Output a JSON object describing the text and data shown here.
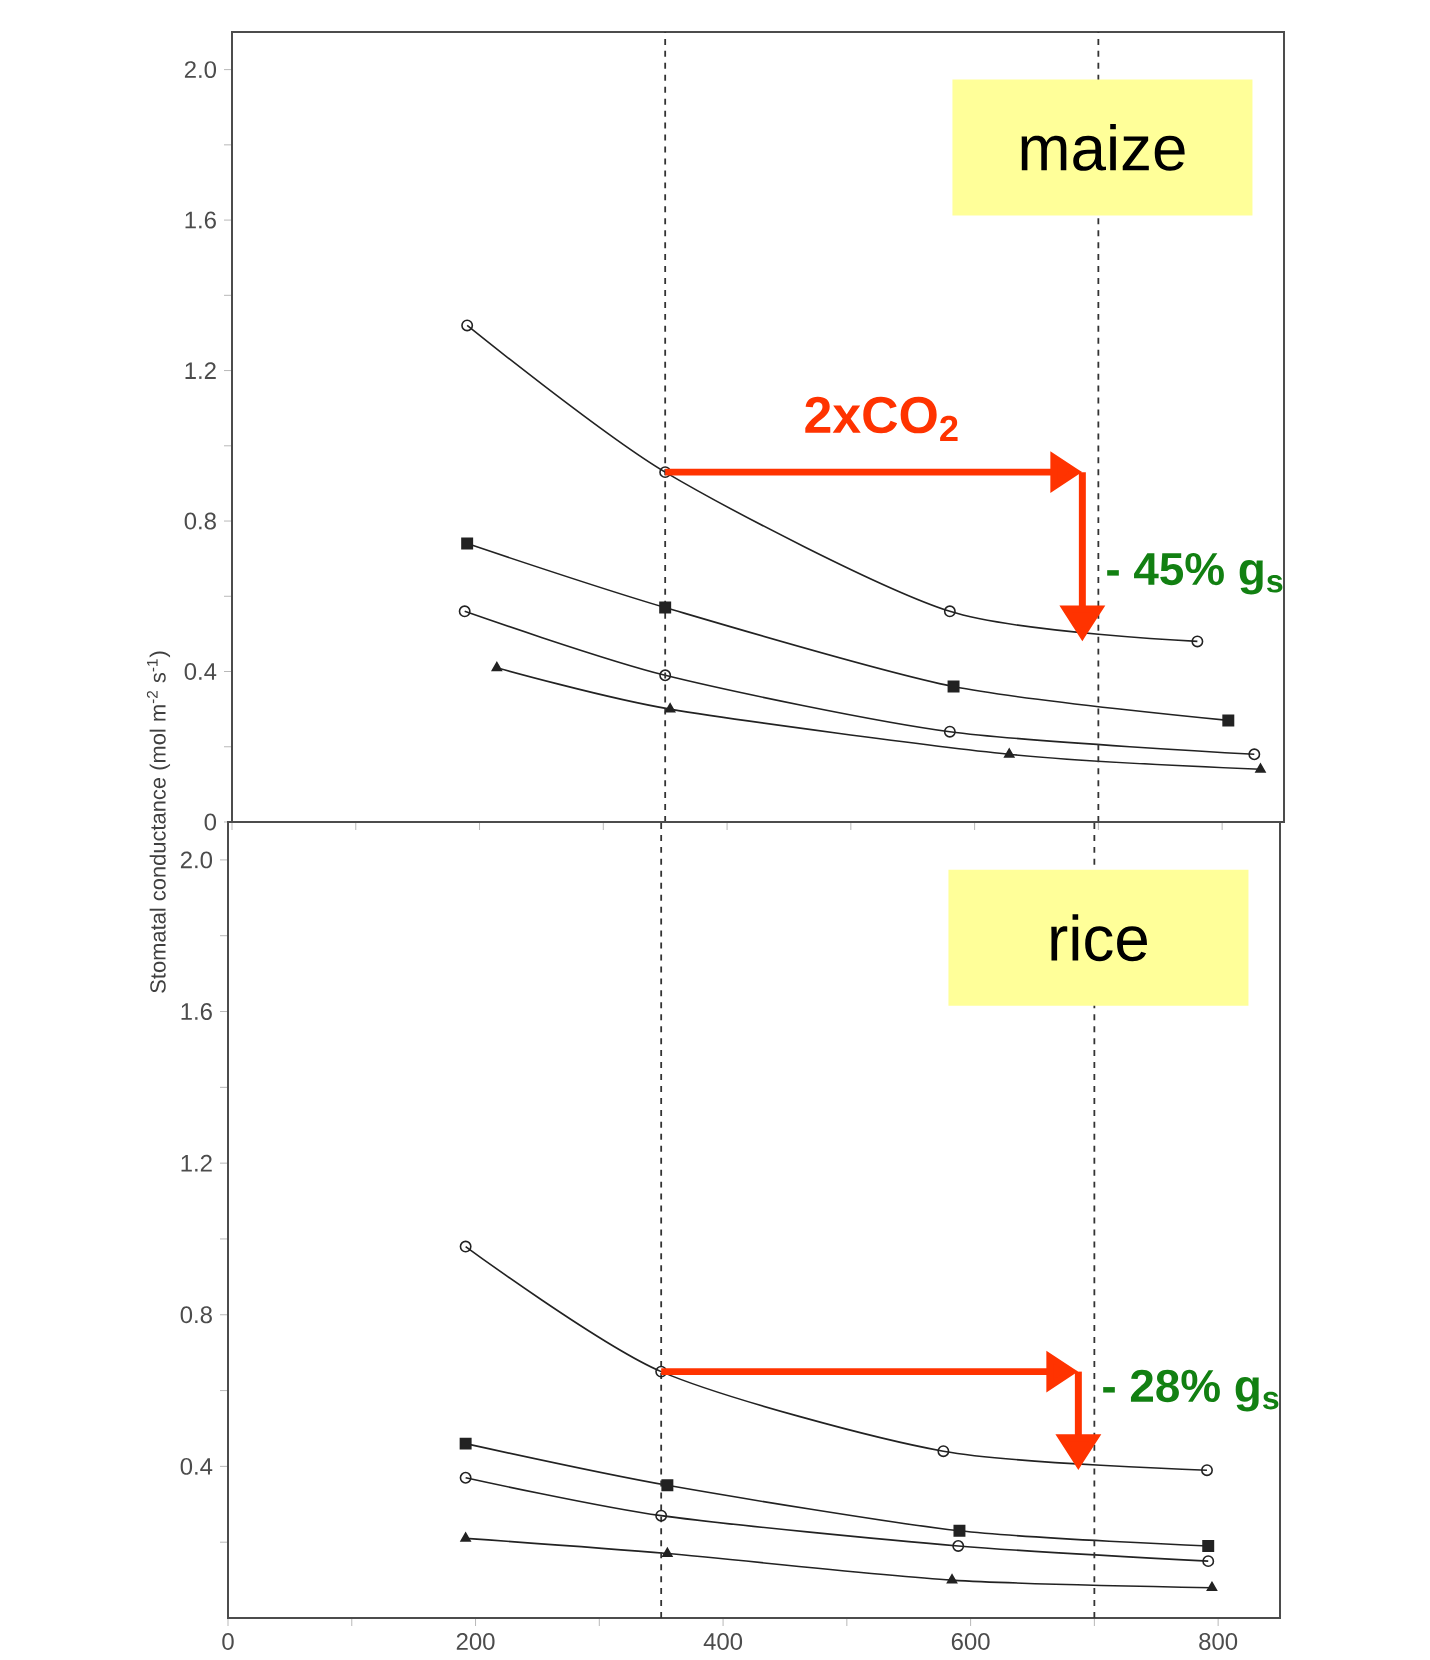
{
  "chart_data": [
    {
      "type": "line",
      "ylabel": "Stomatal conductance (mol m$^{-2}$ s$^{-1}$)",
      "xlim": [
        0,
        850
      ],
      "ylim": [
        0,
        2.1
      ],
      "xticks": [
        0,
        {
          "value": 100,
          "label": null
        },
        200,
        {
          "value": 300,
          "label": null
        },
        400,
        {
          "value": 500,
          "label": null
        },
        600,
        {
          "value": 700,
          "label": null
        },
        800
      ],
      "yticks": [
        0,
        {
          "value": 0.2,
          "label": null
        },
        0.4,
        {
          "value": 0.6,
          "label": null
        },
        0.8,
        {
          "value": 1.0,
          "label": null
        },
        1.2,
        {
          "value": 1.4,
          "label": null
        },
        1.6,
        {
          "value": 1.8,
          "label": null
        },
        {
          "value": 2,
          "label": "2.0"
        }
      ],
      "tick_labels": "y",
      "grid": false,
      "line_style": "solid",
      "series": [
        {
          "color": "#222222",
          "marker": "circle",
          "x": [
            190,
            350,
            580,
            780
          ],
          "values": [
            1.32,
            0.93,
            0.56,
            0.48
          ]
        },
        {
          "color": "#222222",
          "marker": "square",
          "x": [
            190,
            350,
            583,
            805
          ],
          "values": [
            0.74,
            0.57,
            0.36,
            0.27
          ]
        },
        {
          "color": "#222222",
          "marker": "circle",
          "x": [
            188,
            350,
            580,
            826
          ],
          "values": [
            0.56,
            0.39,
            0.24,
            0.18
          ]
        },
        {
          "color": "#222222",
          "marker": "triangle",
          "x": [
            214,
            354,
            628,
            831
          ],
          "values": [
            0.41,
            0.3,
            0.18,
            0.14
          ]
        }
      ],
      "ref_lines": [
        {
          "axis": "x",
          "value": 350,
          "color": "#333333",
          "line_style": "dashed"
        },
        {
          "axis": "x",
          "value": 700,
          "color": "#333333",
          "line_style": "dashed"
        }
      ],
      "annotations": [
        "maize",
        "2xCO$_{2}$",
        {
          "text": "- 45% g$_{s}$",
          "x": 700,
          "y": 0.66
        }
      ]
    },
    {
      "type": "line",
      "xlim": [
        0,
        850
      ],
      "ylim": [
        0,
        2.1
      ],
      "xticks": [
        0,
        {
          "value": 100,
          "label": null
        },
        200,
        {
          "value": 300,
          "label": null
        },
        400,
        {
          "value": 500,
          "label": null
        },
        600,
        {
          "value": 700,
          "label": null
        },
        800
      ],
      "yticks": [
        {
          "value": 0.2,
          "label": null
        },
        0.4,
        {
          "value": 0.6,
          "label": null
        },
        0.8,
        {
          "value": 1.0,
          "label": null
        },
        1.2,
        {
          "value": 1.4,
          "label": null
        },
        1.6,
        {
          "value": 1.8,
          "label": null
        },
        {
          "value": 2,
          "label": "2.0"
        }
      ],
      "grid": false,
      "line_style": "solid",
      "series": [
        {
          "color": "#222222",
          "marker": "circle",
          "x": [
            192,
            350,
            578,
            791
          ],
          "values": [
            0.98,
            0.65,
            0.44,
            0.39
          ]
        },
        {
          "color": "#222222",
          "marker": "square",
          "x": [
            192,
            355,
            591,
            792
          ],
          "values": [
            0.46,
            0.35,
            0.23,
            0.19
          ]
        },
        {
          "color": "#222222",
          "marker": "circle",
          "x": [
            192,
            350,
            590,
            792
          ],
          "values": [
            0.37,
            0.27,
            0.19,
            0.15
          ]
        },
        {
          "color": "#222222",
          "marker": "triangle",
          "x": [
            192,
            355,
            585,
            795
          ],
          "values": [
            0.21,
            0.17,
            0.1,
            0.08
          ]
        }
      ],
      "ref_lines": [
        {
          "axis": "x",
          "value": 350,
          "color": "#333333",
          "line_style": "dashed"
        },
        {
          "axis": "x",
          "value": 700,
          "color": "#333333",
          "line_style": "dashed"
        }
      ],
      "annotations": [
        "rice",
        {
          "text": "- 28% g$_{s}$",
          "x": 700,
          "y": 0.6
        }
      ]
    }
  ]
}
